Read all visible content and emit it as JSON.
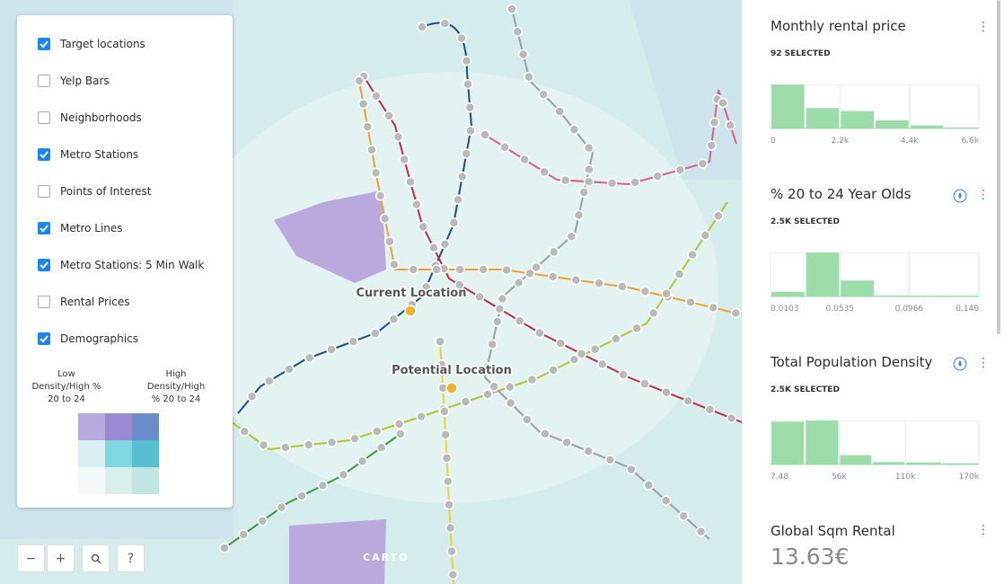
{
  "layers": [
    {
      "label": "Target locations",
      "checked": true
    },
    {
      "label": "Yelp Bars",
      "checked": false
    },
    {
      "label": "Neighborhoods",
      "checked": false
    },
    {
      "label": "Metro Stations",
      "checked": true
    },
    {
      "label": "Points of Interest",
      "checked": false
    },
    {
      "label": "Metro Lines",
      "checked": true
    },
    {
      "label": "Metro Stations: 5 Min Walk",
      "checked": true
    },
    {
      "label": "Rental Prices",
      "checked": false
    },
    {
      "label": "Demographics",
      "checked": true
    }
  ],
  "legend": {
    "low_label": [
      "Low",
      "Density/High %",
      "20 to 24"
    ],
    "high_label": [
      "High",
      "Density/High",
      "% 20 to 24"
    ]
  },
  "map_labels": [
    "Current Location",
    "Potential Location"
  ],
  "attribution": "CARTO",
  "controls": [
    "−",
    "+",
    "?"
  ],
  "widgets": [
    {
      "title": "Monthly rental price",
      "selected": "92 SELECTED",
      "chart": {
        "type": "histogram",
        "color": "#9bdca9",
        "bins": [
          0,
          1100,
          2200,
          3300,
          4400,
          5500,
          6600
        ],
        "values": [
          43,
          20,
          17,
          8,
          3,
          1
        ],
        "xlim": [
          0,
          6600
        ],
        "xticks": [
          0,
          {
            "value": 2200,
            "label": "2.2k"
          },
          {
            "value": 4400,
            "label": "4.4k"
          },
          {
            "value": 6600,
            "label": "6.6k"
          }
        ]
      }
    },
    {
      "title": "% 20 to 24 Year Olds",
      "selected": "2.5K SELECTED",
      "chart": {
        "type": "histogram",
        "color": "#9bdca9",
        "bins": [
          0.0103,
          0.0319,
          0.0535,
          0.0751,
          0.0966,
          0.1182,
          0.14
        ],
        "values": [
          170,
          1630,
          590,
          40,
          35,
          35
        ],
        "xlim": [
          0.0103,
          0.14
        ],
        "xticks": [
          0.0103,
          0.0535,
          0.0966,
          {
            "value": 0.14,
            "label": "0.140"
          }
        ]
      }
    },
    {
      "title": "Total Population Density",
      "selected": "2.5K SELECTED",
      "chart": {
        "type": "histogram",
        "color": "#9bdca9",
        "bins": [
          7.48,
          28000,
          56000,
          83000,
          110000,
          140000,
          170000
        ],
        "values": [
          1050,
          1080,
          230,
          60,
          50,
          30
        ],
        "xlim": [
          7.48,
          170000
        ],
        "xticks": [
          7.48,
          {
            "value": 56000,
            "label": "56k"
          },
          {
            "value": 110000,
            "label": "110k"
          },
          {
            "value": 170000,
            "label": "170k"
          }
        ]
      }
    }
  ],
  "sqm": {
    "title": "Global Sqm Rental",
    "value": "13.63€"
  }
}
